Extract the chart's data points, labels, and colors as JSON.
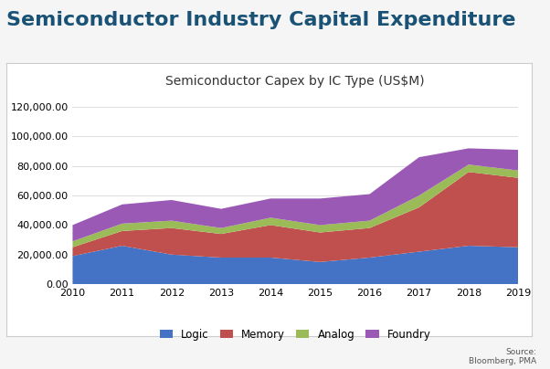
{
  "title_main": "Semiconductor Industry Capital Expenditure",
  "title_chart": "Semiconductor Capex by IC Type (US$M)",
  "years": [
    2010,
    2011,
    2012,
    2013,
    2014,
    2015,
    2016,
    2017,
    2018,
    2019
  ],
  "logic": [
    19000,
    26000,
    20000,
    18000,
    18000,
    15000,
    18000,
    22000,
    26000,
    25000
  ],
  "memory": [
    6000,
    10000,
    18000,
    16000,
    22000,
    20000,
    20000,
    30000,
    50000,
    47000
  ],
  "analog": [
    4000,
    5000,
    5000,
    4000,
    5000,
    5000,
    5000,
    8000,
    5000,
    5000
  ],
  "foundry": [
    11000,
    13000,
    14000,
    13000,
    13000,
    18000,
    18000,
    26000,
    11000,
    14000
  ],
  "colors": {
    "logic": "#4472c4",
    "memory": "#c0504d",
    "analog": "#9bbb59",
    "foundry": "#9b59b6"
  },
  "ylim": [
    0,
    130000
  ],
  "yticks": [
    0,
    20000,
    40000,
    60000,
    80000,
    100000,
    120000
  ],
  "source_text": "Source:\nBloomberg, PMA",
  "title_color": "#1a5276",
  "background_color": "#f5f5f5",
  "chart_background": "#ffffff",
  "border_color": "#cccccc",
  "grid_color": "#dddddd",
  "title_main_fontsize": 16,
  "title_chart_fontsize": 10,
  "tick_fontsize": 8,
  "legend_fontsize": 8.5
}
